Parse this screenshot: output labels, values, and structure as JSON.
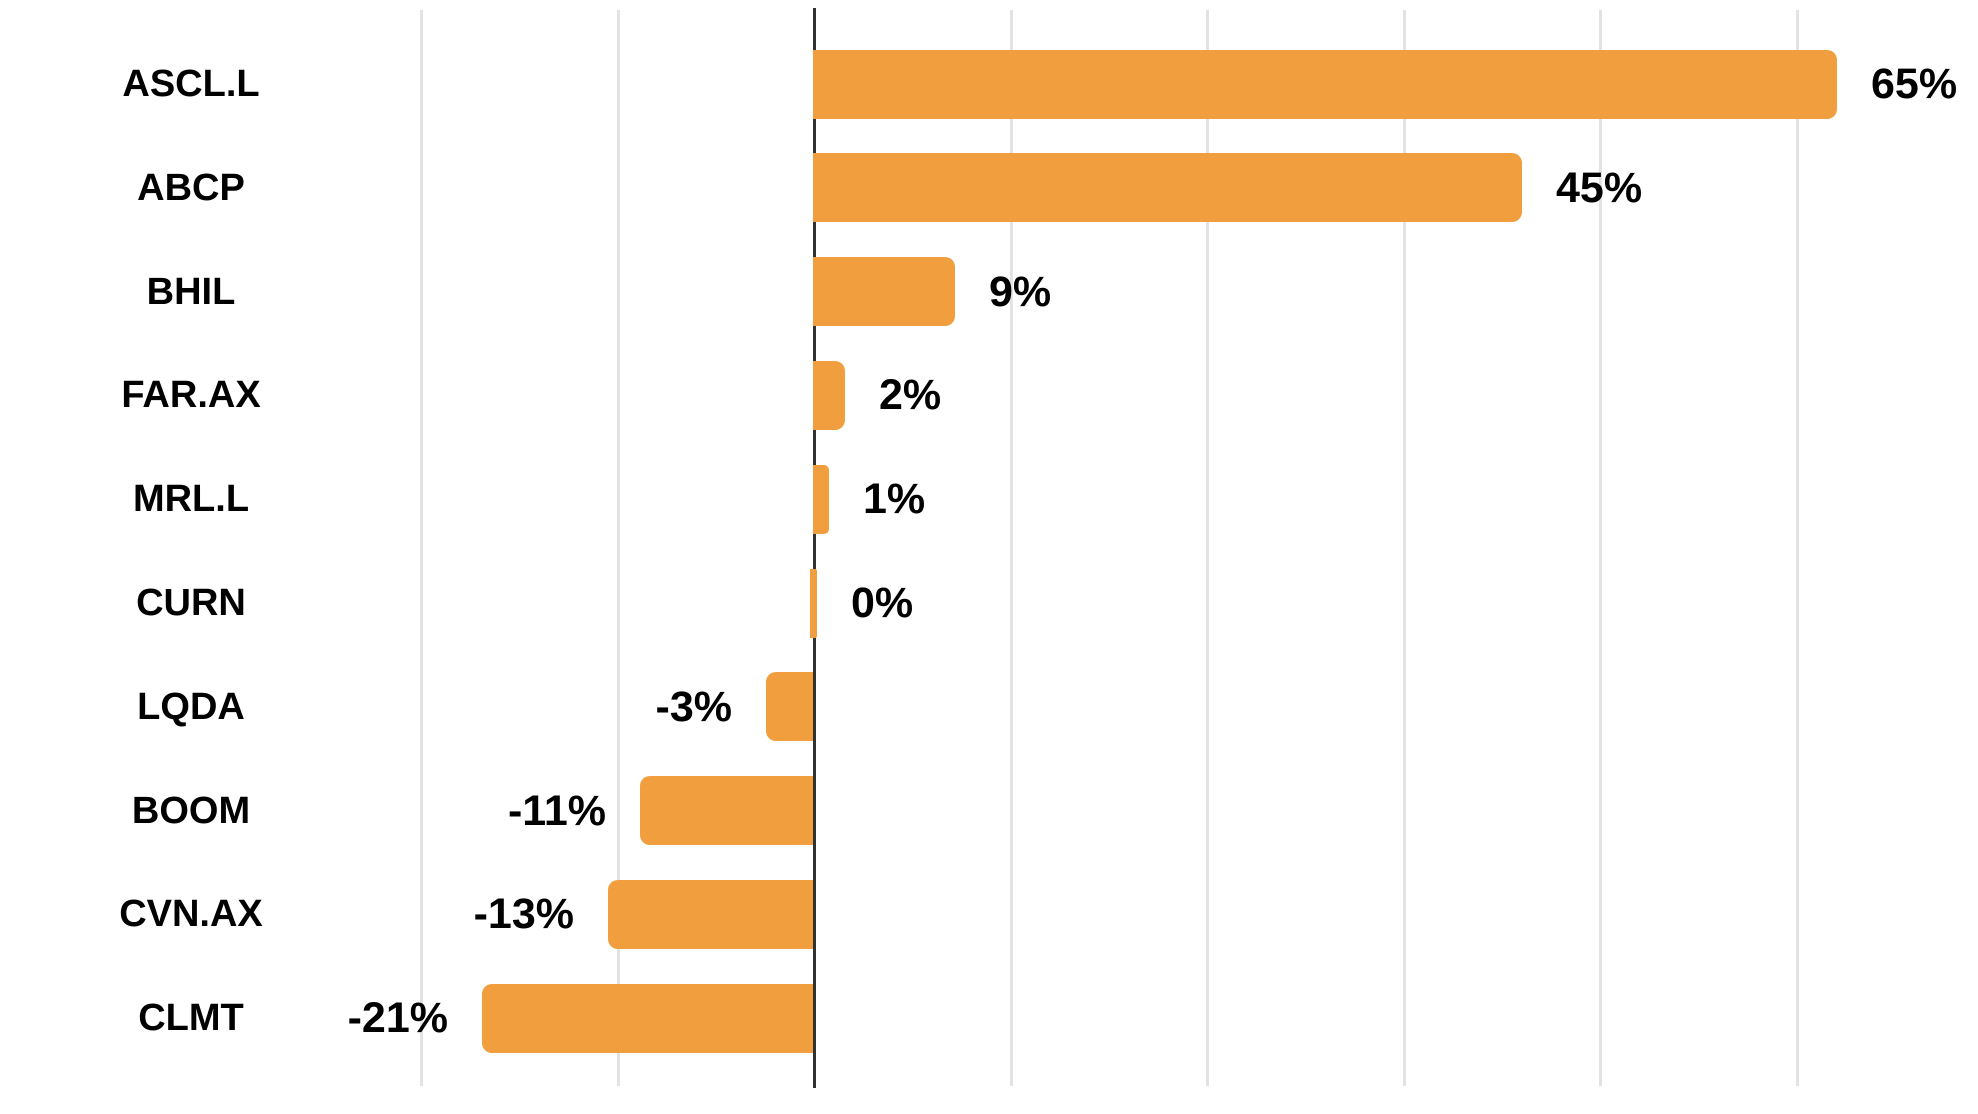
{
  "chart_data": {
    "type": "bar",
    "orientation": "horizontal",
    "title": "",
    "xlabel": "",
    "ylabel": "",
    "categories": [
      "ASCL.L",
      "ABCP",
      "BHIL",
      "FAR.AX",
      "MRL.L",
      "CURN",
      "LQDA",
      "BOOM",
      "CVN.AX",
      "CLMT"
    ],
    "values": [
      65,
      45,
      9,
      2,
      1,
      0,
      -3,
      -11,
      -13,
      -21
    ],
    "value_labels": [
      "65%",
      "45%",
      "9%",
      "2%",
      "1%",
      "0%",
      "-3%",
      "-11%",
      "-13%",
      "-21%"
    ],
    "unit": "%",
    "xlim": [
      -25,
      74
    ],
    "grid_step_percent": 12.5,
    "grid_visible": true,
    "tick_labels_visible": false,
    "legend": "none",
    "zero_line": true,
    "colors": {
      "bar": "#F09E3E",
      "grid": "#E3E3E3",
      "zero_line": "#323232",
      "label_text": "#000000",
      "background": "#FFFFFF"
    }
  }
}
